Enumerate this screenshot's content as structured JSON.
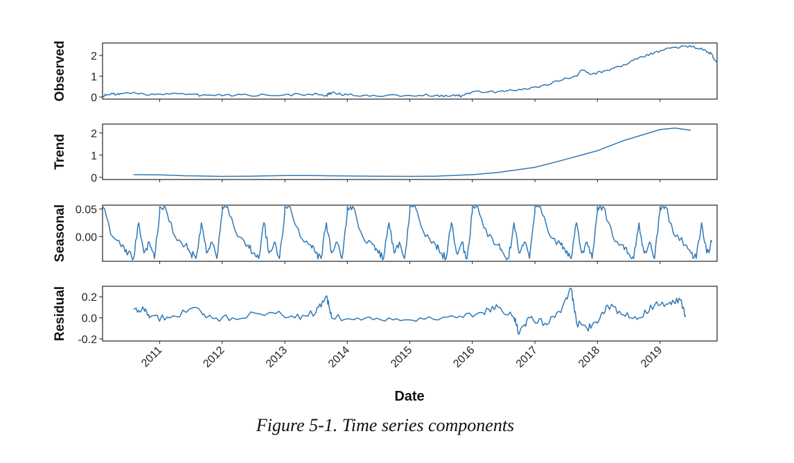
{
  "chart_data": {
    "type": "line",
    "xlabel": "Date",
    "x_range": [
      "2010-02-01",
      "2019-12-01"
    ],
    "x_ticks": [
      "2011",
      "2012",
      "2013",
      "2014",
      "2015",
      "2016",
      "2017",
      "2018",
      "2019"
    ],
    "caption": "Figure 5-1. Time series components",
    "panels": [
      {
        "ylabel": "Observed",
        "ylim": [
          -0.1,
          2.6
        ],
        "y_ticks": [
          0,
          1,
          2
        ],
        "y_tick_labels": [
          "0",
          "1",
          "2"
        ],
        "x": [
          "2010-02",
          "2010-04",
          "2010-06",
          "2010-09",
          "2011-01",
          "2011-06",
          "2011-09",
          "2012-01",
          "2012-06",
          "2013-01",
          "2013-06",
          "2013-09",
          "2013-10",
          "2014-01",
          "2014-06",
          "2015-01",
          "2015-06",
          "2015-09",
          "2015-11",
          "2016-01",
          "2016-06",
          "2016-09",
          "2016-12",
          "2017-03",
          "2017-06",
          "2017-09",
          "2017-10",
          "2017-12",
          "2018-03",
          "2018-06",
          "2018-09",
          "2018-12",
          "2019-03",
          "2019-06",
          "2019-09",
          "2019-11",
          "2019-12"
        ],
        "values": [
          0.05,
          0.15,
          0.18,
          0.15,
          0.15,
          0.12,
          0.08,
          0.06,
          0.09,
          0.11,
          0.12,
          0.09,
          0.2,
          0.1,
          0.09,
          0.08,
          0.08,
          0.07,
          0.06,
          0.25,
          0.27,
          0.32,
          0.4,
          0.6,
          0.8,
          1.0,
          1.3,
          1.1,
          1.3,
          1.55,
          1.9,
          2.15,
          2.35,
          2.45,
          2.35,
          2.05,
          1.6
        ]
      },
      {
        "ylabel": "Trend",
        "ylim": [
          -0.1,
          2.4
        ],
        "y_ticks": [
          0,
          1,
          2
        ],
        "y_tick_labels": [
          "0",
          "1",
          "2"
        ],
        "x": [
          "2010-08",
          "2011-01",
          "2011-06",
          "2012-01",
          "2012-06",
          "2013-01",
          "2013-06",
          "2014-01",
          "2014-06",
          "2015-01",
          "2015-06",
          "2016-01",
          "2016-06",
          "2017-01",
          "2017-06",
          "2018-01",
          "2018-06",
          "2019-01",
          "2019-04",
          "2019-07"
        ],
        "values": [
          0.12,
          0.11,
          0.07,
          0.04,
          0.05,
          0.08,
          0.08,
          0.06,
          0.05,
          0.04,
          0.05,
          0.12,
          0.22,
          0.45,
          0.75,
          1.2,
          1.65,
          2.15,
          2.22,
          2.12
        ]
      },
      {
        "ylabel": "Seasonal",
        "ylim": [
          -0.045,
          0.057
        ],
        "y_ticks": [
          0.05,
          0.0
        ],
        "y_tick_labels": [
          "0.05",
          "0.00"
        ],
        "x": [
          "2010-02",
          "2010-04",
          "2010-06",
          "2010-07",
          "2010-08",
          "2010-09",
          "2010-10",
          "2010-11",
          "2010-12",
          "2011-01",
          "2011-01"
        ],
        "values": [
          0.055,
          0.0,
          -0.015,
          -0.03,
          -0.04,
          0.025,
          -0.03,
          -0.01,
          -0.04,
          0.045,
          0.055
        ],
        "period": "1 year (pattern repeats annually)"
      },
      {
        "ylabel": "Residual",
        "ylim": [
          -0.22,
          0.3
        ],
        "y_ticks": [
          0.2,
          0.0,
          -0.2
        ],
        "y_tick_labels": [
          "0.2",
          "0.0",
          "-0.2"
        ],
        "x": [
          "2010-08",
          "2010-10",
          "2010-11",
          "2011-03",
          "2011-08",
          "2011-10",
          "2012-03",
          "2012-10",
          "2013-03",
          "2013-07",
          "2013-09",
          "2013-10",
          "2014-03",
          "2014-09",
          "2015-03",
          "2015-10",
          "2016-03",
          "2016-06",
          "2016-09",
          "2016-10",
          "2016-12",
          "2017-03",
          "2017-06",
          "2017-08",
          "2017-09",
          "2017-11",
          "2018-01",
          "2018-03",
          "2018-06",
          "2018-09",
          "2018-12",
          "2019-03",
          "2019-05",
          "2019-06"
        ],
        "values": [
          0.08,
          0.08,
          0.0,
          0.0,
          0.1,
          0.0,
          0.0,
          0.05,
          0.0,
          0.05,
          0.21,
          0.0,
          0.0,
          0.0,
          0.0,
          0.0,
          0.05,
          0.1,
          0.0,
          -0.15,
          0.0,
          -0.05,
          0.05,
          0.28,
          -0.05,
          -0.1,
          -0.05,
          0.12,
          0.03,
          0.0,
          0.12,
          0.15,
          0.17,
          0.02
        ]
      }
    ]
  }
}
